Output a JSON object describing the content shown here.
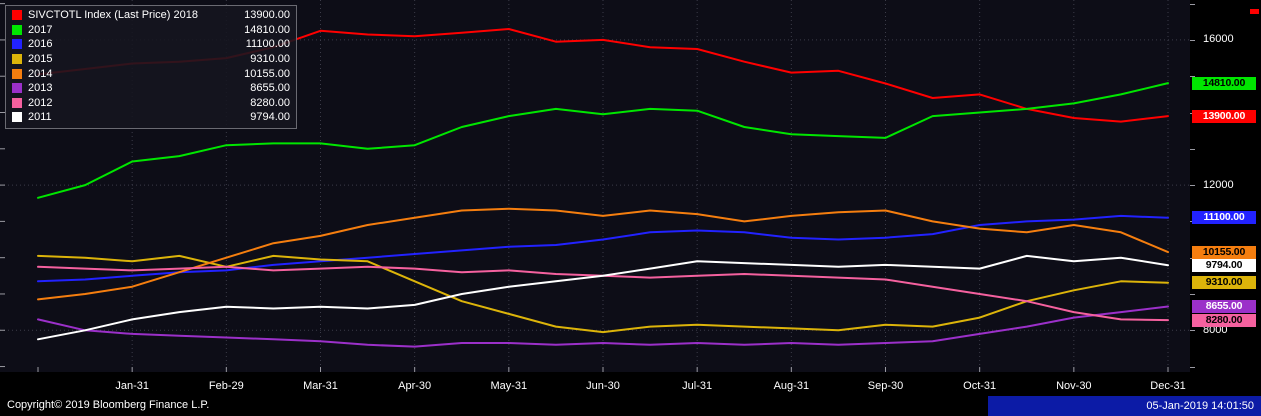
{
  "footer": {
    "copyright": "Copyright© 2019 Bloomberg Finance L.P.",
    "timestamp": "05-Jan-2019 14:01:50"
  },
  "colors": {
    "plot_background": "#0d0d17",
    "grid": "#3c3c49",
    "tick": "#9a9aa2",
    "timestamp_bar": "#0c1ba6"
  },
  "chart_data": {
    "type": "line",
    "title": "SIVCTOTL Index (Last Price)",
    "legend_position": "top-left",
    "grid": "dotted",
    "ylim": [
      6850,
      17100
    ],
    "y_grid": [
      16000,
      12000,
      8000
    ],
    "y_grid_labels": [
      "16000",
      "12000",
      "8000"
    ],
    "y_minor_step": 1000,
    "x_tick_labels": [
      "Jan-31",
      "Feb-29",
      "Mar-31",
      "Apr-30",
      "May-31",
      "Jun-30",
      "Jul-31",
      "Aug-31",
      "Sep-30",
      "Oct-31",
      "Nov-30",
      "Dec-31"
    ],
    "series": [
      {
        "name": "2018",
        "legend_label": "SIVCTOTL Index (Last Price) 2018",
        "last_label": "13900.00",
        "last": 13900,
        "color": "#ff0000",
        "badge_text_color": "#ffffff",
        "values": [
          15050,
          15200,
          15350,
          15400,
          15500,
          15800,
          16250,
          16150,
          16100,
          16200,
          16300,
          15950,
          16000,
          15800,
          15750,
          15400,
          15100,
          15150,
          14800,
          14400,
          14500,
          14100,
          13850,
          13750,
          13900
        ]
      },
      {
        "name": "2017",
        "legend_label": "2017",
        "last_label": "14810.00",
        "last": 14810,
        "color": "#00e600",
        "badge_text_color": "#000000",
        "values": [
          11650,
          12000,
          12650,
          12800,
          13100,
          13150,
          13150,
          13000,
          13100,
          13600,
          13900,
          14100,
          13950,
          14100,
          14050,
          13600,
          13400,
          13350,
          13300,
          13900,
          14000,
          14100,
          14250,
          14500,
          14810
        ]
      },
      {
        "name": "2016",
        "legend_label": "2016",
        "last_label": "11100.00",
        "last": 11100,
        "color": "#2222ff",
        "badge_text_color": "#ffffff",
        "values": [
          9350,
          9400,
          9500,
          9600,
          9650,
          9800,
          9900,
          10000,
          10100,
          10200,
          10300,
          10350,
          10500,
          10700,
          10750,
          10700,
          10550,
          10500,
          10550,
          10650,
          10900,
          11000,
          11050,
          11150,
          11100
        ]
      },
      {
        "name": "2015",
        "legend_label": "2015",
        "last_label": "9310.00",
        "last": 9310,
        "color": "#dcb40a",
        "badge_text_color": "#000000",
        "values": [
          10050,
          10000,
          9900,
          10050,
          9750,
          10050,
          9950,
          9900,
          9350,
          8800,
          8450,
          8100,
          7950,
          8100,
          8150,
          8100,
          8050,
          8000,
          8150,
          8100,
          8350,
          8800,
          9100,
          9350,
          9310
        ]
      },
      {
        "name": "2014",
        "legend_label": "2014",
        "last_label": "10155.00",
        "last": 10155,
        "color": "#f57e0f",
        "badge_text_color": "#000000",
        "values": [
          8850,
          9000,
          9200,
          9600,
          10000,
          10400,
          10600,
          10900,
          11100,
          11300,
          11350,
          11300,
          11150,
          11300,
          11200,
          11000,
          11150,
          11250,
          11300,
          11000,
          10800,
          10700,
          10900,
          10700,
          10155
        ]
      },
      {
        "name": "2013",
        "legend_label": "2013",
        "last_label": "8655.00",
        "last": 8655,
        "color": "#9b30c9",
        "badge_text_color": "#ffffff",
        "values": [
          8300,
          8000,
          7900,
          7850,
          7800,
          7750,
          7700,
          7600,
          7550,
          7650,
          7650,
          7600,
          7650,
          7600,
          7650,
          7600,
          7650,
          7600,
          7650,
          7700,
          7900,
          8100,
          8350,
          8500,
          8655
        ]
      },
      {
        "name": "2012",
        "legend_label": "2012",
        "last_label": "8280.00",
        "last": 8280,
        "color": "#f5619f",
        "badge_text_color": "#000000",
        "values": [
          9750,
          9700,
          9650,
          9700,
          9750,
          9650,
          9700,
          9750,
          9700,
          9600,
          9650,
          9550,
          9500,
          9450,
          9500,
          9550,
          9500,
          9450,
          9400,
          9200,
          9000,
          8800,
          8500,
          8300,
          8280
        ]
      },
      {
        "name": "2011",
        "legend_label": "2011",
        "last_label": "9794.00",
        "last": 9794,
        "color": "#ffffff",
        "badge_text_color": "#000000",
        "values": [
          7750,
          8000,
          8300,
          8500,
          8650,
          8600,
          8650,
          8600,
          8700,
          9000,
          9200,
          9350,
          9500,
          9700,
          9900,
          9850,
          9800,
          9750,
          9800,
          9750,
          9700,
          10050,
          9900,
          10000,
          9794
        ]
      }
    ]
  }
}
